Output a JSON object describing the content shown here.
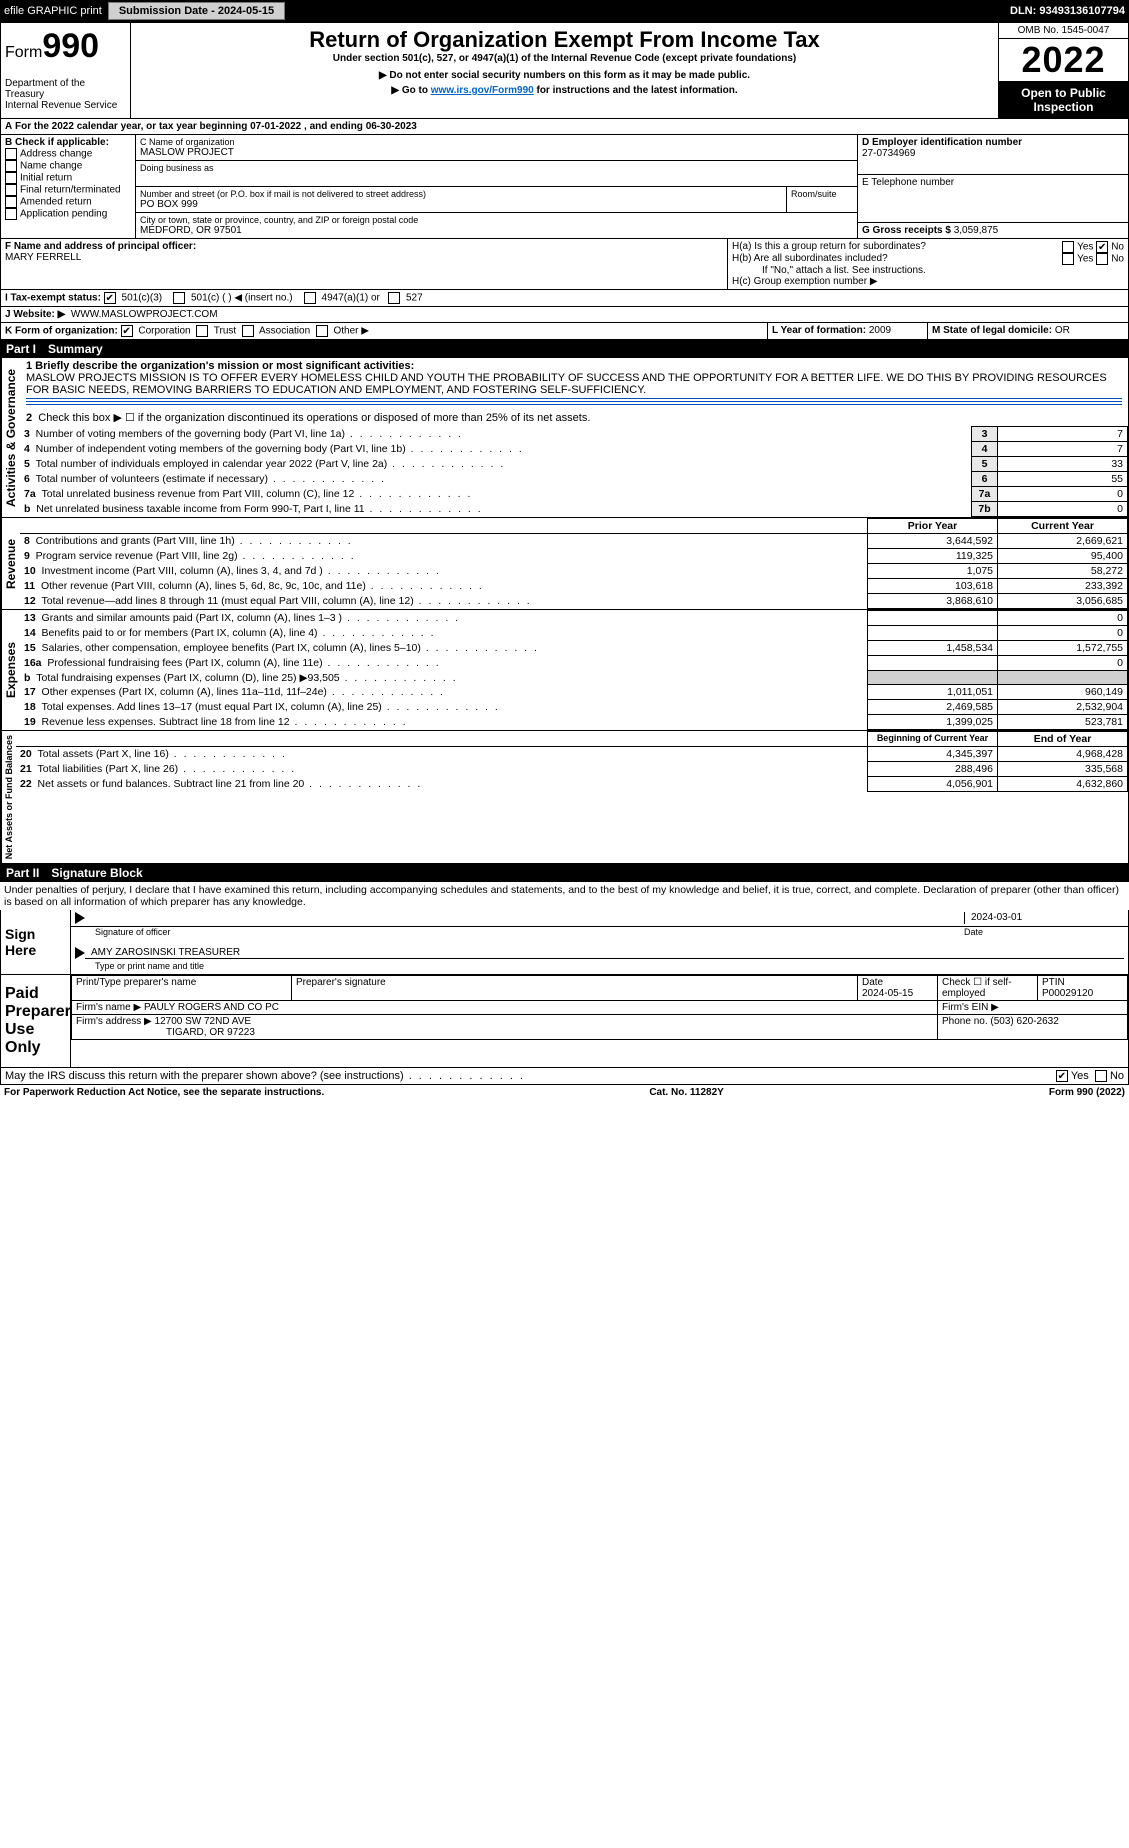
{
  "topbar": {
    "efile": "efile GRAPHIC print",
    "submission_label": "Submission Date - 2024-05-15",
    "dln": "DLN: 93493136107794"
  },
  "header": {
    "form_prefix": "Form",
    "form_number": "990",
    "dept": "Department of the Treasury",
    "irs": "Internal Revenue Service",
    "title": "Return of Organization Exempt From Income Tax",
    "subtitle": "Under section 501(c), 527, or 4947(a)(1) of the Internal Revenue Code (except private foundations)",
    "note1": "▶ Do not enter social security numbers on this form as it may be made public.",
    "note2_pre": "▶ Go to ",
    "note2_link": "www.irs.gov/Form990",
    "note2_post": " for instructions and the latest information.",
    "omb": "OMB No. 1545-0047",
    "year": "2022",
    "inspect": "Open to Public Inspection"
  },
  "line_a": "For the 2022 calendar year, or tax year beginning 07-01-2022   , and ending 06-30-2023",
  "section_b": {
    "label": "B Check if applicable:",
    "addr": "Address change",
    "name": "Name change",
    "init": "Initial return",
    "final": "Final return/terminated",
    "amend": "Amended return",
    "app": "Application pending"
  },
  "section_c": {
    "label": "C Name of organization",
    "org": "MASLOW PROJECT",
    "dba_label": "Doing business as",
    "addr_label": "Number and street (or P.O. box if mail is not delivered to street address)",
    "room_label": "Room/suite",
    "addr": "PO BOX 999",
    "city_label": "City or town, state or province, country, and ZIP or foreign postal code",
    "city": "MEDFORD, OR  97501"
  },
  "section_d": {
    "label": "D Employer identification number",
    "ein": "27-0734969",
    "e_label": "E Telephone number",
    "g_label": "G Gross receipts $",
    "g_val": "3,059,875"
  },
  "section_fh": {
    "f_label": "F Name and address of principal officer:",
    "f_name": "MARY FERRELL",
    "ha_label": "H(a)  Is this a group return for subordinates?",
    "hb_label": "H(b)  Are all subordinates included?",
    "hb_note": "If \"No,\" attach a list. See instructions.",
    "hc_label": "H(c)  Group exemption number ▶",
    "yes": "Yes",
    "no": "No"
  },
  "tax_exempt": {
    "i_label": "I   Tax-exempt status:",
    "c3": "501(c)(3)",
    "c_ins": "501(c) (  ) ◀ (insert no.)",
    "a1": "4947(a)(1) or",
    "s527": "527"
  },
  "website": {
    "j_label": "J   Website: ▶",
    "url": "WWW.MASLOWPROJECT.COM"
  },
  "section_k": {
    "k_label": "K Form of organization:",
    "corp": "Corporation",
    "trust": "Trust",
    "assoc": "Association",
    "other": "Other ▶",
    "l_label": "L Year of formation:",
    "l_val": "2009",
    "m_label": "M State of legal domicile:",
    "m_val": "OR"
  },
  "part1": {
    "label": "Part I",
    "title": "Summary"
  },
  "summary": {
    "line1_label": "1 Briefly describe the organization's mission or most significant activities:",
    "mission": "MASLOW PROJECTS MISSION IS TO OFFER EVERY HOMELESS CHILD AND YOUTH THE PROBABILITY OF SUCCESS AND THE OPPORTUNITY FOR A BETTER LIFE. WE DO THIS BY PROVIDING RESOURCES FOR BASIC NEEDS, REMOVING BARRIERS TO EDUCATION AND EMPLOYMENT, AND FOSTERING SELF-SUFFICIENCY.",
    "line2": "Check this box ▶ ☐  if the organization discontinued its operations or disposed of more than 25% of its net assets.",
    "rows_ag": [
      {
        "n": "3",
        "t": "Number of voting members of the governing body (Part VI, line 1a)",
        "box": "3",
        "v": "7"
      },
      {
        "n": "4",
        "t": "Number of independent voting members of the governing body (Part VI, line 1b)",
        "box": "4",
        "v": "7"
      },
      {
        "n": "5",
        "t": "Total number of individuals employed in calendar year 2022 (Part V, line 2a)",
        "box": "5",
        "v": "33"
      },
      {
        "n": "6",
        "t": "Total number of volunteers (estimate if necessary)",
        "box": "6",
        "v": "55"
      },
      {
        "n": "7a",
        "t": "Total unrelated business revenue from Part VIII, column (C), line 12",
        "box": "7a",
        "v": "0"
      },
      {
        "n": "b",
        "t": "Net unrelated business taxable income from Form 990-T, Part I, line 11",
        "box": "7b",
        "v": "0"
      }
    ],
    "prior": "Prior Year",
    "current": "Current Year",
    "rows_rev": [
      {
        "n": "8",
        "t": "Contributions and grants (Part VIII, line 1h)",
        "p": "3,644,592",
        "c": "2,669,621"
      },
      {
        "n": "9",
        "t": "Program service revenue (Part VIII, line 2g)",
        "p": "119,325",
        "c": "95,400"
      },
      {
        "n": "10",
        "t": "Investment income (Part VIII, column (A), lines 3, 4, and 7d )",
        "p": "1,075",
        "c": "58,272"
      },
      {
        "n": "11",
        "t": "Other revenue (Part VIII, column (A), lines 5, 6d, 8c, 9c, 10c, and 11e)",
        "p": "103,618",
        "c": "233,392"
      },
      {
        "n": "12",
        "t": "Total revenue—add lines 8 through 11 (must equal Part VIII, column (A), line 12)",
        "p": "3,868,610",
        "c": "3,056,685"
      }
    ],
    "rows_exp": [
      {
        "n": "13",
        "t": "Grants and similar amounts paid (Part IX, column (A), lines 1–3 )",
        "p": "",
        "c": "0"
      },
      {
        "n": "14",
        "t": "Benefits paid to or for members (Part IX, column (A), line 4)",
        "p": "",
        "c": "0"
      },
      {
        "n": "15",
        "t": "Salaries, other compensation, employee benefits (Part IX, column (A), lines 5–10)",
        "p": "1,458,534",
        "c": "1,572,755"
      },
      {
        "n": "16a",
        "t": "Professional fundraising fees (Part IX, column (A), line 11e)",
        "p": "",
        "c": "0"
      },
      {
        "n": "b",
        "t": "Total fundraising expenses (Part IX, column (D), line 25) ▶93,505",
        "p": "shade",
        "c": "shade"
      },
      {
        "n": "17",
        "t": "Other expenses (Part IX, column (A), lines 11a–11d, 11f–24e)",
        "p": "1,011,051",
        "c": "960,149"
      },
      {
        "n": "18",
        "t": "Total expenses. Add lines 13–17 (must equal Part IX, column (A), line 25)",
        "p": "2,469,585",
        "c": "2,532,904"
      },
      {
        "n": "19",
        "t": "Revenue less expenses. Subtract line 18 from line 12",
        "p": "1,399,025",
        "c": "523,781"
      }
    ],
    "begin": "Beginning of Current Year",
    "end": "End of Year",
    "rows_na": [
      {
        "n": "20",
        "t": "Total assets (Part X, line 16)",
        "p": "4,345,397",
        "c": "4,968,428"
      },
      {
        "n": "21",
        "t": "Total liabilities (Part X, line 26)",
        "p": "288,496",
        "c": "335,568"
      },
      {
        "n": "22",
        "t": "Net assets or fund balances. Subtract line 21 from line 20",
        "p": "4,056,901",
        "c": "4,632,860"
      }
    ],
    "vert_ag": "Activities & Governance",
    "vert_rev": "Revenue",
    "vert_exp": "Expenses",
    "vert_na": "Net Assets or Fund Balances"
  },
  "part2": {
    "label": "Part II",
    "title": "Signature Block",
    "decl": "Under penalties of perjury, I declare that I have examined this return, including accompanying schedules and statements, and to the best of my knowledge and belief, it is true, correct, and complete. Declaration of preparer (other than officer) is based on all information of which preparer has any knowledge."
  },
  "sign": {
    "here": "Sign Here",
    "sig_officer": "Signature of officer",
    "date": "Date",
    "date_val": "2024-03-01",
    "name": "AMY ZAROSINSKI TREASURER",
    "name_label": "Type or print name and title"
  },
  "preparer": {
    "label": "Paid Preparer Use Only",
    "print_label": "Print/Type preparer's name",
    "sig_label": "Preparer's signature",
    "pdate_label": "Date",
    "pdate": "2024-05-15",
    "check_label": "Check ☐ if self-employed",
    "ptin_label": "PTIN",
    "ptin": "P00029120",
    "firm_name_label": "Firm's name    ▶",
    "firm_name": "PAULY ROGERS AND CO PC",
    "firm_ein_label": "Firm's EIN ▶",
    "firm_addr_label": "Firm's address ▶",
    "firm_addr1": "12700 SW 72ND AVE",
    "firm_addr2": "TIGARD, OR  97223",
    "phone_label": "Phone no.",
    "phone": "(503) 620-2632"
  },
  "discuss": {
    "text": "May the IRS discuss this return with the preparer shown above? (see instructions)",
    "yes": "Yes",
    "no": "No"
  },
  "footer": {
    "left": "For Paperwork Reduction Act Notice, see the separate instructions.",
    "mid": "Cat. No. 11282Y",
    "right": "Form 990 (2022)"
  }
}
